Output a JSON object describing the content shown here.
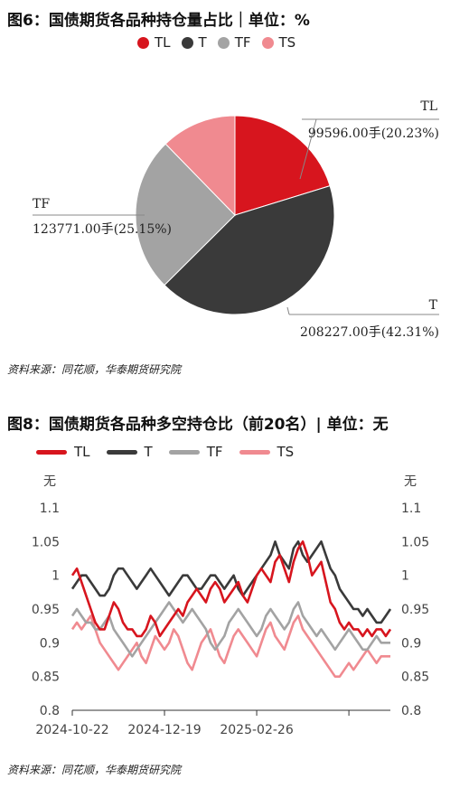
{
  "chart1": {
    "title": "图6：国债期货各品种持仓量占比｜单位：%",
    "source": "资料来源：同花顺，华泰期货研究院",
    "legend": [
      {
        "name": "TL",
        "color": "#d7151e"
      },
      {
        "name": "T",
        "color": "#3a3a3a"
      },
      {
        "name": "TF",
        "color": "#a3a3a3"
      },
      {
        "name": "TS",
        "color": "#f08a90"
      }
    ],
    "labels": [
      {
        "name": "TL",
        "text": "99596.00手(20.23%)"
      },
      {
        "name": "T",
        "text": "208227.00手(42.31%)"
      },
      {
        "name": "TF",
        "text": "123771.00手(25.15%)"
      }
    ]
  },
  "chart2": {
    "title": "图8：国债期货各品种多空持仓比（前20名）| 单位：无",
    "source": "资料来源：同花顺，华泰期货研究院",
    "unit_left": "无",
    "unit_right": "无",
    "yticks": [
      "1.1",
      "1.05",
      "1",
      "0.95",
      "0.9",
      "0.85",
      "0.8"
    ],
    "xticks": [
      "2024-10-22",
      "2024-12-19",
      "2025-02-26"
    ],
    "legend": [
      {
        "name": "TL",
        "color": "#d7151e"
      },
      {
        "name": "T",
        "color": "#3a3a3a"
      },
      {
        "name": "TF",
        "color": "#a3a3a3"
      },
      {
        "name": "TS",
        "color": "#f08a90"
      }
    ]
  },
  "chart_data": [
    {
      "type": "pie",
      "categories": [
        "TL",
        "T",
        "TF",
        "TS"
      ],
      "values": [
        99596.0,
        208227.0,
        123771.0,
        60497.0
      ],
      "percent": [
        20.23,
        42.31,
        25.15,
        12.31
      ],
      "colors": [
        "#d7151e",
        "#3a3a3a",
        "#a3a3a3",
        "#f08a90"
      ],
      "title": "图6：国债期货各品种持仓量占比｜单位：%"
    },
    {
      "type": "line",
      "title": "图8：国债期货各品种多空持仓比（前20名）| 单位：无",
      "ylim": [
        0.8,
        1.1
      ],
      "x_start": "2024-10-22",
      "x_ticks": [
        "2024-10-22",
        "2024-12-19",
        "2025-02-26"
      ],
      "series": [
        {
          "name": "TL",
          "color": "#d7151e",
          "values": [
            1.0,
            1.01,
            0.99,
            0.97,
            0.95,
            0.93,
            0.92,
            0.92,
            0.94,
            0.96,
            0.95,
            0.93,
            0.92,
            0.92,
            0.91,
            0.91,
            0.92,
            0.94,
            0.93,
            0.91,
            0.92,
            0.93,
            0.94,
            0.95,
            0.94,
            0.96,
            0.97,
            0.98,
            0.97,
            0.96,
            0.98,
            0.99,
            0.98,
            0.96,
            0.97,
            0.98,
            0.99,
            0.97,
            0.96,
            0.98,
            1.0,
            1.01,
            1.0,
            0.99,
            1.02,
            1.03,
            1.01,
            0.99,
            1.02,
            1.04,
            1.05,
            1.03,
            1.0,
            1.01,
            1.02,
            0.99,
            0.96,
            0.95,
            0.93,
            0.92,
            0.93,
            0.92,
            0.92,
            0.91,
            0.92,
            0.91,
            0.92,
            0.92,
            0.91,
            0.92
          ]
        },
        {
          "name": "T",
          "color": "#3a3a3a",
          "values": [
            0.98,
            0.99,
            1.0,
            1.0,
            0.99,
            0.98,
            0.97,
            0.97,
            0.98,
            1.0,
            1.01,
            1.01,
            1.0,
            0.99,
            0.98,
            0.99,
            1.0,
            1.01,
            1.0,
            0.99,
            0.98,
            0.97,
            0.98,
            0.99,
            1.0,
            1.0,
            0.99,
            0.98,
            0.98,
            0.99,
            1.0,
            1.0,
            0.99,
            0.98,
            0.99,
            1.0,
            0.98,
            0.97,
            0.98,
            0.99,
            1.0,
            1.01,
            1.02,
            1.03,
            1.05,
            1.03,
            1.02,
            1.01,
            1.04,
            1.05,
            1.03,
            1.02,
            1.03,
            1.04,
            1.05,
            1.03,
            1.01,
            1.0,
            0.98,
            0.97,
            0.96,
            0.95,
            0.95,
            0.94,
            0.95,
            0.94,
            0.93,
            0.93,
            0.94,
            0.95
          ]
        },
        {
          "name": "TF",
          "color": "#a3a3a3",
          "values": [
            0.94,
            0.95,
            0.94,
            0.93,
            0.93,
            0.92,
            0.92,
            0.93,
            0.94,
            0.92,
            0.91,
            0.9,
            0.89,
            0.88,
            0.89,
            0.9,
            0.91,
            0.92,
            0.93,
            0.94,
            0.95,
            0.96,
            0.95,
            0.94,
            0.93,
            0.94,
            0.95,
            0.94,
            0.93,
            0.92,
            0.9,
            0.89,
            0.9,
            0.91,
            0.93,
            0.94,
            0.95,
            0.94,
            0.93,
            0.92,
            0.91,
            0.92,
            0.94,
            0.95,
            0.94,
            0.93,
            0.92,
            0.93,
            0.95,
            0.96,
            0.94,
            0.93,
            0.92,
            0.91,
            0.92,
            0.91,
            0.9,
            0.89,
            0.9,
            0.91,
            0.92,
            0.91,
            0.9,
            0.89,
            0.89,
            0.9,
            0.91,
            0.9,
            0.9,
            0.9
          ]
        },
        {
          "name": "TS",
          "color": "#f08a90",
          "values": [
            0.92,
            0.93,
            0.92,
            0.93,
            0.94,
            0.92,
            0.9,
            0.89,
            0.88,
            0.87,
            0.86,
            0.87,
            0.88,
            0.89,
            0.9,
            0.88,
            0.87,
            0.89,
            0.91,
            0.9,
            0.89,
            0.9,
            0.92,
            0.91,
            0.89,
            0.87,
            0.86,
            0.88,
            0.9,
            0.91,
            0.92,
            0.9,
            0.88,
            0.87,
            0.89,
            0.91,
            0.92,
            0.91,
            0.9,
            0.89,
            0.88,
            0.9,
            0.92,
            0.93,
            0.91,
            0.9,
            0.89,
            0.91,
            0.93,
            0.94,
            0.92,
            0.91,
            0.9,
            0.89,
            0.88,
            0.87,
            0.86,
            0.85,
            0.85,
            0.86,
            0.87,
            0.86,
            0.87,
            0.88,
            0.89,
            0.88,
            0.87,
            0.88,
            0.88,
            0.88
          ]
        }
      ]
    }
  ]
}
